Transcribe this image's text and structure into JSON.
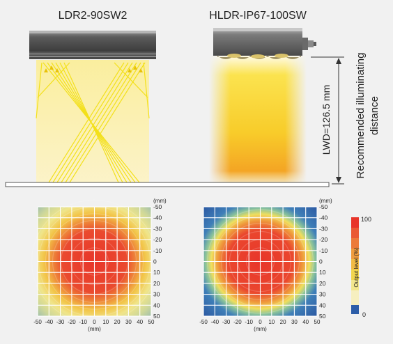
{
  "products": {
    "left": {
      "name": "LDR2-90SW2"
    },
    "right": {
      "name": "HLDR-IP67-100SW"
    }
  },
  "distance": {
    "lwd_label": "LWD=126.5 mm",
    "note_line1": "Recommended illuminating",
    "note_line2": "distance"
  },
  "maps": {
    "unit": "(mm)",
    "ticks": [
      -50,
      -40,
      -30,
      -20,
      -10,
      0,
      10,
      20,
      30,
      40,
      50
    ],
    "left_peak_output_pct": 100,
    "right_peak_output_pct": 100
  },
  "legend": {
    "title": "Output level (%)",
    "max_label": "100",
    "min_label": "0",
    "colors": [
      "#e8352a",
      "#ea5a34",
      "#ec7a3a",
      "#ef9c3e",
      "#f2bb44",
      "#f1d64e",
      "#f2e68e",
      "#f6efc0",
      "#2d5ea8"
    ]
  },
  "colors": {
    "housing": "#505050",
    "beam": "#f7d33a",
    "ray": "#f3e01a",
    "heat_hot": "#e8352a",
    "heat_cold": "#2d5ea8"
  }
}
